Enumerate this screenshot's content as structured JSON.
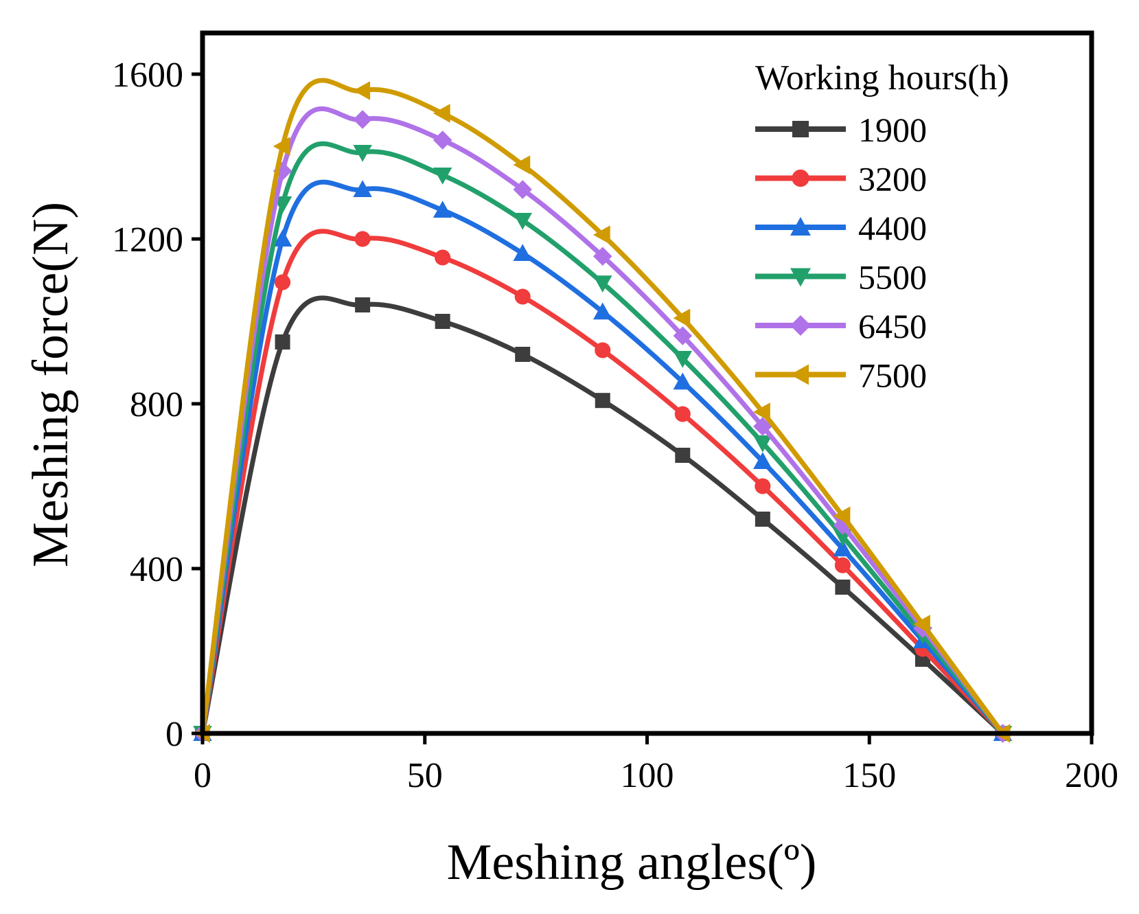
{
  "chart_data": {
    "type": "line",
    "title": "",
    "xlabel": "Meshing angles(º)",
    "ylabel": "Meshing force(N)",
    "xlim": [
      0,
      200
    ],
    "ylim": [
      0,
      1700
    ],
    "xticks": [
      0,
      50,
      100,
      150,
      200
    ],
    "yticks": [
      0,
      400,
      800,
      1200,
      1600
    ],
    "xtick_labels": [
      "0",
      "50",
      "100",
      "150",
      "200"
    ],
    "ytick_labels": [
      "0",
      "400",
      "800",
      "1200",
      "1600"
    ],
    "grid": false,
    "legend": {
      "title": "Working hours(h)",
      "position": "top-right"
    },
    "x": [
      0,
      18,
      36,
      54,
      72,
      90,
      108,
      126,
      144,
      162,
      180
    ],
    "series": [
      {
        "name": "1900",
        "color": "#3d3d3d",
        "marker": "square",
        "values": [
          0,
          950,
          1040,
          1000,
          920,
          808,
          675,
          520,
          355,
          180,
          0
        ]
      },
      {
        "name": "3200",
        "color": "#f03c3c",
        "marker": "circle",
        "values": [
          0,
          1095,
          1200,
          1155,
          1060,
          930,
          775,
          600,
          408,
          205,
          0
        ]
      },
      {
        "name": "4400",
        "color": "#1f6fe0",
        "marker": "triangle-up",
        "values": [
          0,
          1200,
          1320,
          1270,
          1165,
          1023,
          853,
          660,
          448,
          225,
          0
        ]
      },
      {
        "name": "5500",
        "color": "#22a06b",
        "marker": "triangle-down",
        "values": [
          0,
          1285,
          1410,
          1355,
          1245,
          1093,
          910,
          705,
          478,
          240,
          0
        ]
      },
      {
        "name": "6450",
        "color": "#b072e8",
        "marker": "diamond",
        "values": [
          0,
          1365,
          1490,
          1440,
          1320,
          1158,
          965,
          745,
          505,
          255,
          0
        ]
      },
      {
        "name": "7500",
        "color": "#d09b00",
        "marker": "triangle-left",
        "values": [
          0,
          1425,
          1560,
          1505,
          1380,
          1210,
          1008,
          780,
          528,
          265,
          0
        ]
      }
    ]
  }
}
